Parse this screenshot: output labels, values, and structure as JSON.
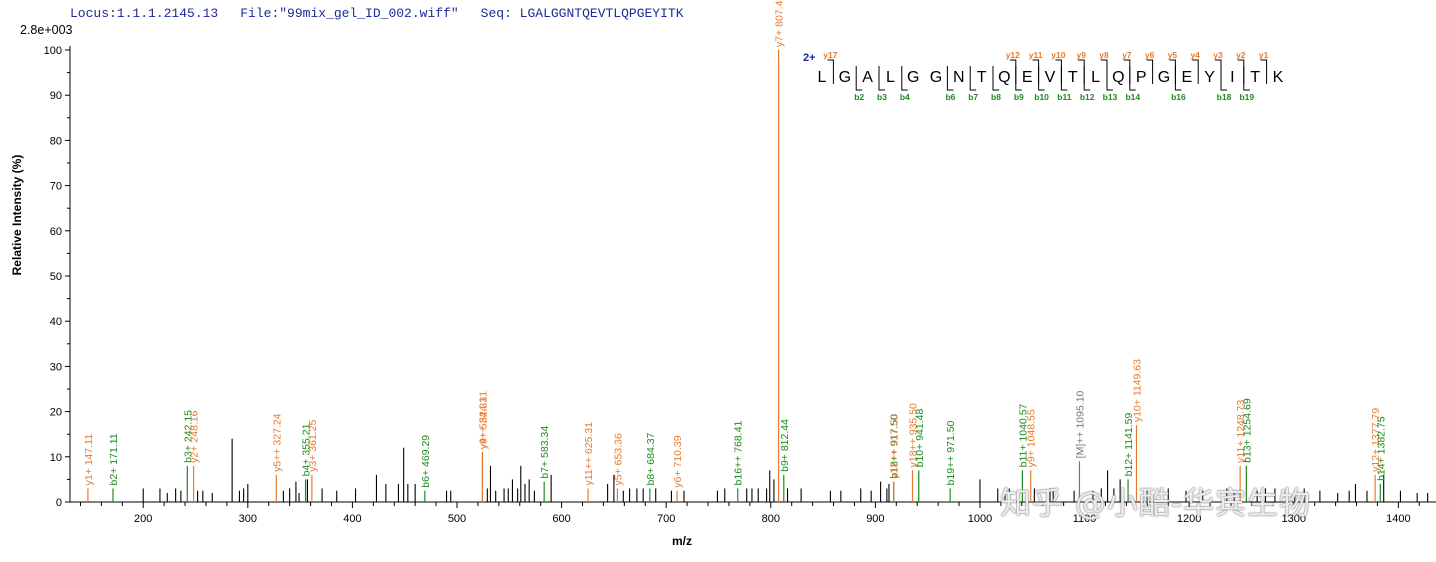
{
  "header": {
    "locus": "Locus:1.1.1.2145.13",
    "file": "File:\"99mix_gel_ID_002.wiff\"",
    "seq": "Seq: LGALGGNTQEVTLQPGEYITK"
  },
  "scale_label": "2.8e+003",
  "watermark": "知乎 @小酷-华宾生物",
  "colors": {
    "y_ion": "#e87a2c",
    "b_ion": "#1f8a1f",
    "precursor": "#777777",
    "peak": "#000000",
    "header": "#1a2b9a"
  },
  "chart_data": {
    "type": "bar",
    "xlabel": "m/z",
    "ylabel": "Relative   Intensity (%)",
    "xlim": [
      130,
      1436
    ],
    "ylim": [
      0,
      100
    ],
    "x_ticks": [
      200,
      300,
      400,
      500,
      600,
      700,
      800,
      900,
      1000,
      1100,
      1200,
      1300,
      1400
    ],
    "y_ticks": [
      0,
      10,
      20,
      30,
      40,
      50,
      60,
      70,
      80,
      90,
      100
    ],
    "annotated_peaks": [
      {
        "mz": 147.11,
        "intensity": 3,
        "ion": "y",
        "label": "y1+ 147.11"
      },
      {
        "mz": 171.11,
        "intensity": 3,
        "ion": "b",
        "label": "b2+ 171.11"
      },
      {
        "mz": 242.15,
        "intensity": 8,
        "ion": "b",
        "label": "b3+ 242.15"
      },
      {
        "mz": 248.16,
        "intensity": 8,
        "ion": "y",
        "label": "y2+ 248.16"
      },
      {
        "mz": 327.24,
        "intensity": 6,
        "ion": "y",
        "label": "y5++ 327.24"
      },
      {
        "mz": 355.21,
        "intensity": 5,
        "ion": "b",
        "label": "b4+ 355.21"
      },
      {
        "mz": 361.25,
        "intensity": 6,
        "ion": "y",
        "label": "y3+ 361.25"
      },
      {
        "mz": 469.29,
        "intensity": 2.5,
        "ion": "b",
        "label": "b6+ 469.29"
      },
      {
        "mz": 524.31,
        "intensity": 11,
        "ion": "y",
        "label": "y4+ 524.31"
      },
      {
        "mz": 524.32,
        "intensity": 11,
        "ion": "y",
        "label": "y9++ 524.31"
      },
      {
        "mz": 583.34,
        "intensity": 4.5,
        "ion": "b",
        "label": "b7+ 583.34"
      },
      {
        "mz": 625.31,
        "intensity": 3,
        "ion": "y",
        "label": "y11++ 625.31"
      },
      {
        "mz": 653.36,
        "intensity": 3,
        "ion": "y",
        "label": "y5+ 653.36"
      },
      {
        "mz": 684.37,
        "intensity": 3,
        "ion": "b",
        "label": "b8+ 684.37"
      },
      {
        "mz": 710.39,
        "intensity": 2.5,
        "ion": "y",
        "label": "y6+ 710.39"
      },
      {
        "mz": 768.41,
        "intensity": 3,
        "ion": "b",
        "label": "b16++ 768.41"
      },
      {
        "mz": 807.43,
        "intensity": 100,
        "ion": "y",
        "label": "y7+ 807.43"
      },
      {
        "mz": 812.44,
        "intensity": 6,
        "ion": "b",
        "label": "b9+ 812.44"
      },
      {
        "mz": 917.5,
        "intensity": 4.5,
        "ion": "b",
        "label": "b18++ 917.50"
      },
      {
        "mz": 917.52,
        "intensity": 4.5,
        "ion": "y",
        "label": "y17++ 917.50"
      },
      {
        "mz": 935.5,
        "intensity": 7,
        "ion": "y",
        "label": "y18++ 935.50"
      },
      {
        "mz": 941.48,
        "intensity": 7,
        "ion": "b",
        "label": "b10+ 941.48"
      },
      {
        "mz": 971.5,
        "intensity": 3,
        "ion": "b",
        "label": "b19++ 971.50"
      },
      {
        "mz": 1040.57,
        "intensity": 7,
        "ion": "b",
        "label": "b11+ 1040.57"
      },
      {
        "mz": 1048.55,
        "intensity": 7,
        "ion": "y",
        "label": "y9+ 1048.55"
      },
      {
        "mz": 1095.1,
        "intensity": 9,
        "ion": "M",
        "label": "[M]++ 1095.10"
      },
      {
        "mz": 1141.59,
        "intensity": 5,
        "ion": "b",
        "label": "b12+ 1141.59"
      },
      {
        "mz": 1149.63,
        "intensity": 17,
        "ion": "y",
        "label": "y10+ 1149.63"
      },
      {
        "mz": 1248.73,
        "intensity": 8,
        "ion": "y",
        "label": "y11+ 1248.73"
      },
      {
        "mz": 1254.69,
        "intensity": 8,
        "ion": "b",
        "label": "b13+ 1254.69"
      },
      {
        "mz": 1377.79,
        "intensity": 6,
        "ion": "y",
        "label": "y12+ 1377.79"
      },
      {
        "mz": 1382.75,
        "intensity": 4,
        "ion": "b",
        "label": "b14+ 1382.75"
      }
    ],
    "unannotated_peaks": [
      [
        200,
        3
      ],
      [
        216,
        3
      ],
      [
        223,
        2
      ],
      [
        231,
        3
      ],
      [
        236,
        2.5
      ],
      [
        252,
        2.5
      ],
      [
        257,
        2.5
      ],
      [
        266,
        2
      ],
      [
        285,
        14
      ],
      [
        292,
        2.5
      ],
      [
        296,
        3
      ],
      [
        300,
        4
      ],
      [
        334,
        2.5
      ],
      [
        340,
        3
      ],
      [
        346,
        4.5
      ],
      [
        349,
        2
      ],
      [
        357,
        5
      ],
      [
        371,
        3
      ],
      [
        385,
        2.5
      ],
      [
        403,
        3
      ],
      [
        423,
        6
      ],
      [
        432,
        4
      ],
      [
        444,
        4
      ],
      [
        449,
        12
      ],
      [
        453,
        4
      ],
      [
        460,
        4
      ],
      [
        490,
        2.5
      ],
      [
        494,
        2.5
      ],
      [
        529,
        3
      ],
      [
        532,
        8
      ],
      [
        537,
        2.5
      ],
      [
        545,
        3
      ],
      [
        549,
        3
      ],
      [
        553,
        5
      ],
      [
        558,
        3
      ],
      [
        561,
        8
      ],
      [
        565,
        4
      ],
      [
        569,
        5
      ],
      [
        574,
        2.5
      ],
      [
        590,
        6
      ],
      [
        644,
        4
      ],
      [
        650,
        6
      ],
      [
        659,
        2.5
      ],
      [
        665,
        3
      ],
      [
        672,
        3
      ],
      [
        678,
        3
      ],
      [
        690,
        3
      ],
      [
        705,
        2.5
      ],
      [
        717,
        2.5
      ],
      [
        749,
        2.5
      ],
      [
        756,
        3
      ],
      [
        777,
        3
      ],
      [
        782,
        3
      ],
      [
        788,
        3
      ],
      [
        796,
        3
      ],
      [
        799,
        7
      ],
      [
        803,
        5
      ],
      [
        816,
        3
      ],
      [
        829,
        3
      ],
      [
        857,
        2.5
      ],
      [
        867,
        2.5
      ],
      [
        886,
        3
      ],
      [
        896,
        2.5
      ],
      [
        905,
        4.5
      ],
      [
        911,
        3
      ],
      [
        913,
        4
      ],
      [
        1000,
        5
      ],
      [
        1017,
        3
      ],
      [
        1024,
        3
      ],
      [
        1028,
        3
      ],
      [
        1052,
        3
      ],
      [
        1067,
        3
      ],
      [
        1070,
        3
      ],
      [
        1090,
        2.5
      ],
      [
        1108,
        2.5
      ],
      [
        1116,
        3
      ],
      [
        1122,
        7
      ],
      [
        1128,
        3
      ],
      [
        1134,
        5
      ],
      [
        1160,
        3
      ],
      [
        1180,
        3
      ],
      [
        1197,
        2.5
      ],
      [
        1213,
        2.5
      ],
      [
        1236,
        3
      ],
      [
        1243,
        2.5
      ],
      [
        1265,
        2.5
      ],
      [
        1273,
        3
      ],
      [
        1282,
        3
      ],
      [
        1301,
        2.5
      ],
      [
        1310,
        3
      ],
      [
        1325,
        2.5
      ],
      [
        1342,
        2
      ],
      [
        1353,
        2.5
      ],
      [
        1359,
        4
      ],
      [
        1370,
        2.5
      ],
      [
        1386,
        6
      ],
      [
        1402,
        2.5
      ],
      [
        1418,
        2
      ],
      [
        1428,
        2
      ]
    ]
  },
  "sequence_map": {
    "charge": "2+",
    "residues": [
      "L",
      "G",
      "A",
      "L",
      "G",
      "G",
      "N",
      "T",
      "Q",
      "E",
      "V",
      "T",
      "L",
      "Q",
      "P",
      "G",
      "E",
      "Y",
      "I",
      "T",
      "K"
    ],
    "y_ions": [
      {
        "after": 1,
        "label": "y17"
      },
      {
        "after": 9,
        "label": "y12"
      },
      {
        "after": 10,
        "label": "y11"
      },
      {
        "after": 11,
        "label": "y10"
      },
      {
        "after": 12,
        "label": "y9"
      },
      {
        "after": 13,
        "label": "y8"
      },
      {
        "after": 14,
        "label": "y7"
      },
      {
        "after": 15,
        "label": "y6"
      },
      {
        "after": 16,
        "label": "y5"
      },
      {
        "after": 17,
        "label": "y4"
      },
      {
        "after": 18,
        "label": "y3"
      },
      {
        "after": 19,
        "label": "y2"
      },
      {
        "after": 20,
        "label": "y1"
      }
    ],
    "b_ions": [
      {
        "after": 2,
        "label": "b2"
      },
      {
        "after": 3,
        "label": "b3"
      },
      {
        "after": 4,
        "label": "b4"
      },
      {
        "after": 6,
        "label": "b6"
      },
      {
        "after": 7,
        "label": "b7"
      },
      {
        "after": 8,
        "label": "b8"
      },
      {
        "after": 9,
        "label": "b9"
      },
      {
        "after": 10,
        "label": "b10"
      },
      {
        "after": 11,
        "label": "b11"
      },
      {
        "after": 12,
        "label": "b12"
      },
      {
        "after": 13,
        "label": "b13"
      },
      {
        "after": 14,
        "label": "b14"
      },
      {
        "after": 16,
        "label": "b16"
      },
      {
        "after": 18,
        "label": "b18"
      },
      {
        "after": 19,
        "label": "b19"
      }
    ]
  }
}
